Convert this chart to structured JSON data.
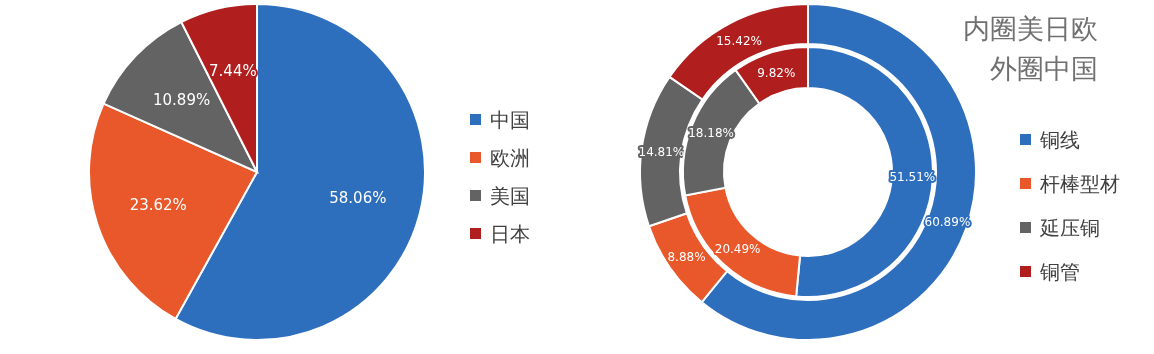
{
  "chart_data": [
    {
      "type": "pie",
      "categories": [
        "中国",
        "欧洲",
        "美国",
        "日本"
      ],
      "values": [
        58.06,
        23.62,
        10.89,
        7.44
      ],
      "value_labels": [
        "58.06%",
        "23.62%",
        "10.89%",
        "7.44%"
      ],
      "colors": [
        "#2e6fbd",
        "#e8582a",
        "#636363",
        "#b01e1e"
      ],
      "legend": "right"
    },
    {
      "type": "donut",
      "categories": [
        "铜线",
        "杆棒型材",
        "延压铜",
        "铜管"
      ],
      "colors": [
        "#2e6fbd",
        "#e8582a",
        "#636363",
        "#b01e1e"
      ],
      "series": [
        {
          "values": [
            60.89,
            8.88,
            14.81,
            15.42
          ],
          "value_labels": [
            "60.89%",
            "8.88%",
            "14.81%",
            "15.42%"
          ]
        },
        {
          "values": [
            51.51,
            20.49,
            18.18,
            9.82
          ],
          "value_labels": [
            "51.51%",
            "20.49%",
            "18.18%",
            "9.82%"
          ]
        }
      ],
      "legend": "right",
      "annotations": [
        "内圈美日欧",
        "外圈中国"
      ]
    }
  ]
}
